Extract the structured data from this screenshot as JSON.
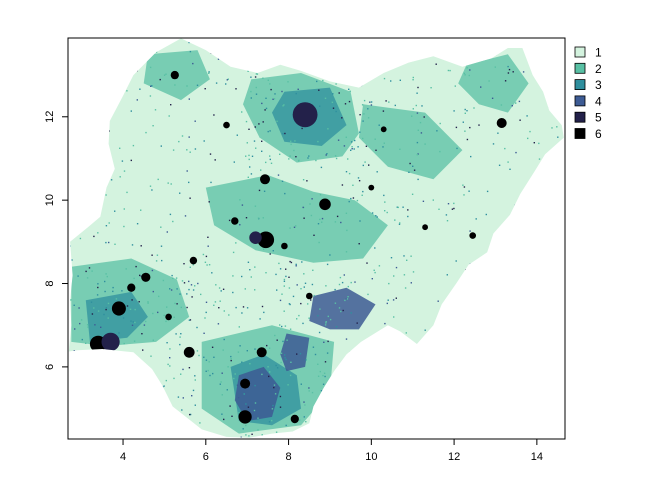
{
  "chart_data": {
    "type": "raster-map",
    "title": "",
    "xlabel": "",
    "ylabel": "",
    "xlim": [
      2.67,
      14.68
    ],
    "ylim": [
      4.27,
      13.89
    ],
    "x_ticks": [
      {
        "value": 4,
        "label": "4"
      },
      {
        "value": 6,
        "label": "6"
      },
      {
        "value": 8,
        "label": "8"
      },
      {
        "value": 10,
        "label": "10"
      },
      {
        "value": 12,
        "label": "12"
      },
      {
        "value": 14,
        "label": "14"
      }
    ],
    "y_ticks": [
      {
        "value": 6,
        "label": "6"
      },
      {
        "value": 8,
        "label": "8"
      },
      {
        "value": 10,
        "label": "10"
      },
      {
        "value": 12,
        "label": "12"
      }
    ],
    "legend": {
      "placement": "right",
      "classes": [
        {
          "value": 1,
          "label": "1",
          "color": "#d4f3df"
        },
        {
          "value": 2,
          "label": "2",
          "color": "#59c0a4"
        },
        {
          "value": 3,
          "label": "3",
          "color": "#2f8f9e"
        },
        {
          "value": 4,
          "label": "4",
          "color": "#3d5b94"
        },
        {
          "value": 5,
          "label": "5",
          "color": "#23214a"
        },
        {
          "value": 6,
          "label": "6",
          "color": "#000000"
        }
      ]
    },
    "outline": [
      [
        2.69,
        6.37
      ],
      [
        2.75,
        7.0
      ],
      [
        2.72,
        7.6
      ],
      [
        2.78,
        8.2
      ],
      [
        2.72,
        9.0
      ],
      [
        3.15,
        9.35
      ],
      [
        3.45,
        9.6
      ],
      [
        3.6,
        10.3
      ],
      [
        3.8,
        10.75
      ],
      [
        3.65,
        11.35
      ],
      [
        3.68,
        11.9
      ],
      [
        4.0,
        12.5
      ],
      [
        4.25,
        13.0
      ],
      [
        4.8,
        13.55
      ],
      [
        5.4,
        13.88
      ],
      [
        6.0,
        13.6
      ],
      [
        6.6,
        13.2
      ],
      [
        7.25,
        13.05
      ],
      [
        7.8,
        13.25
      ],
      [
        8.3,
        13.1
      ],
      [
        9.0,
        12.85
      ],
      [
        9.7,
        12.7
      ],
      [
        10.3,
        13.05
      ],
      [
        10.9,
        13.3
      ],
      [
        11.5,
        13.45
      ],
      [
        12.2,
        13.2
      ],
      [
        12.9,
        13.4
      ],
      [
        13.3,
        13.65
      ],
      [
        13.65,
        13.65
      ],
      [
        13.9,
        13.0
      ],
      [
        14.15,
        12.6
      ],
      [
        14.3,
        12.15
      ],
      [
        14.6,
        11.8
      ],
      [
        14.65,
        11.5
      ],
      [
        14.2,
        11.1
      ],
      [
        13.95,
        10.7
      ],
      [
        13.6,
        10.15
      ],
      [
        13.35,
        9.65
      ],
      [
        12.95,
        9.2
      ],
      [
        12.8,
        8.75
      ],
      [
        12.35,
        8.45
      ],
      [
        12.05,
        8.0
      ],
      [
        11.7,
        7.5
      ],
      [
        11.5,
        7.0
      ],
      [
        11.1,
        6.55
      ],
      [
        10.7,
        6.85
      ],
      [
        10.4,
        7.0
      ],
      [
        9.75,
        6.6
      ],
      [
        9.4,
        6.3
      ],
      [
        9.1,
        5.9
      ],
      [
        8.85,
        5.5
      ],
      [
        8.6,
        5.05
      ],
      [
        8.5,
        4.65
      ],
      [
        8.1,
        4.45
      ],
      [
        7.6,
        4.4
      ],
      [
        7.05,
        4.3
      ],
      [
        6.5,
        4.32
      ],
      [
        5.9,
        4.5
      ],
      [
        5.65,
        4.7
      ],
      [
        5.2,
        5.05
      ],
      [
        4.95,
        5.55
      ],
      [
        4.7,
        5.95
      ],
      [
        4.25,
        6.35
      ],
      [
        3.5,
        6.43
      ],
      [
        2.9,
        6.4
      ]
    ],
    "regions": [
      {
        "class": 2,
        "shape": [
          [
            7.1,
            12.9
          ],
          [
            8.3,
            13.05
          ],
          [
            9.5,
            12.6
          ],
          [
            9.7,
            11.6
          ],
          [
            9.3,
            11.05
          ],
          [
            8.2,
            10.9
          ],
          [
            7.3,
            11.5
          ],
          [
            6.9,
            12.3
          ]
        ]
      },
      {
        "class": 3,
        "shape": [
          [
            7.9,
            12.6
          ],
          [
            9.0,
            12.7
          ],
          [
            9.4,
            11.8
          ],
          [
            8.8,
            11.3
          ],
          [
            7.9,
            11.4
          ],
          [
            7.6,
            12.1
          ]
        ]
      },
      {
        "class": 2,
        "shape": [
          [
            12.3,
            13.25
          ],
          [
            13.3,
            13.5
          ],
          [
            13.8,
            12.8
          ],
          [
            13.3,
            12.1
          ],
          [
            12.6,
            12.3
          ],
          [
            12.1,
            12.8
          ]
        ]
      },
      {
        "class": 2,
        "shape": [
          [
            4.6,
            13.5
          ],
          [
            5.8,
            13.6
          ],
          [
            6.1,
            12.9
          ],
          [
            5.4,
            12.4
          ],
          [
            4.5,
            12.8
          ]
        ]
      },
      {
        "class": 2,
        "shape": [
          [
            2.75,
            8.4
          ],
          [
            4.2,
            8.6
          ],
          [
            5.3,
            8.1
          ],
          [
            5.6,
            7.2
          ],
          [
            4.8,
            6.6
          ],
          [
            3.6,
            6.5
          ],
          [
            2.75,
            6.6
          ]
        ]
      },
      {
        "class": 3,
        "shape": [
          [
            3.1,
            7.6
          ],
          [
            4.2,
            7.8
          ],
          [
            4.6,
            7.2
          ],
          [
            4.1,
            6.7
          ],
          [
            3.2,
            6.6
          ]
        ]
      },
      {
        "class": 2,
        "shape": [
          [
            5.9,
            6.6
          ],
          [
            7.6,
            7.0
          ],
          [
            9.1,
            6.6
          ],
          [
            9.0,
            5.4
          ],
          [
            8.3,
            4.6
          ],
          [
            6.8,
            4.4
          ],
          [
            5.9,
            5.0
          ]
        ]
      },
      {
        "class": 3,
        "shape": [
          [
            6.6,
            6.0
          ],
          [
            7.4,
            6.3
          ],
          [
            8.2,
            5.8
          ],
          [
            8.3,
            5.0
          ],
          [
            7.6,
            4.6
          ],
          [
            6.8,
            4.7
          ]
        ]
      },
      {
        "class": 4,
        "shape": [
          [
            8.6,
            7.7
          ],
          [
            9.4,
            7.9
          ],
          [
            10.1,
            7.5
          ],
          [
            9.7,
            6.9
          ],
          [
            9.0,
            6.9
          ],
          [
            8.5,
            7.1
          ]
        ]
      },
      {
        "class": 4,
        "shape": [
          [
            6.8,
            5.8
          ],
          [
            7.4,
            6.0
          ],
          [
            7.8,
            5.5
          ],
          [
            7.6,
            4.8
          ],
          [
            7.0,
            4.7
          ],
          [
            6.7,
            5.2
          ]
        ]
      },
      {
        "class": 4,
        "shape": [
          [
            7.95,
            6.8
          ],
          [
            8.5,
            6.7
          ],
          [
            8.4,
            6.0
          ],
          [
            7.95,
            5.9
          ],
          [
            7.8,
            6.3
          ]
        ]
      },
      {
        "class": 2,
        "shape": [
          [
            6.0,
            10.3
          ],
          [
            7.5,
            10.6
          ],
          [
            8.6,
            10.2
          ],
          [
            9.6,
            10.0
          ],
          [
            10.4,
            9.4
          ],
          [
            9.8,
            8.6
          ],
          [
            8.6,
            8.5
          ],
          [
            7.2,
            8.8
          ],
          [
            6.2,
            9.4
          ]
        ]
      },
      {
        "class": 2,
        "shape": [
          [
            9.8,
            12.3
          ],
          [
            11.3,
            12.1
          ],
          [
            12.2,
            11.2
          ],
          [
            11.5,
            10.5
          ],
          [
            10.4,
            10.8
          ],
          [
            9.7,
            11.5
          ]
        ]
      }
    ],
    "cities": [
      {
        "class": 6,
        "x": 8.52,
        "y": 12.0,
        "r": 0.16
      },
      {
        "class": 5,
        "x": 8.4,
        "y": 12.05,
        "r": 0.3
      },
      {
        "class": 6,
        "x": 7.43,
        "y": 10.5,
        "r": 0.12
      },
      {
        "class": 6,
        "x": 7.45,
        "y": 9.05,
        "r": 0.2
      },
      {
        "class": 5,
        "x": 7.2,
        "y": 9.1,
        "r": 0.15
      },
      {
        "class": 6,
        "x": 8.88,
        "y": 9.9,
        "r": 0.14
      },
      {
        "class": 6,
        "x": 13.15,
        "y": 11.85,
        "r": 0.12
      },
      {
        "class": 6,
        "x": 5.25,
        "y": 13.0,
        "r": 0.1
      },
      {
        "class": 6,
        "x": 3.4,
        "y": 6.55,
        "r": 0.2
      },
      {
        "class": 5,
        "x": 3.7,
        "y": 6.6,
        "r": 0.22
      },
      {
        "class": 6,
        "x": 3.9,
        "y": 7.4,
        "r": 0.17
      },
      {
        "class": 6,
        "x": 4.55,
        "y": 8.15,
        "r": 0.11
      },
      {
        "class": 6,
        "x": 4.2,
        "y": 7.9,
        "r": 0.1
      },
      {
        "class": 6,
        "x": 5.6,
        "y": 6.35,
        "r": 0.13
      },
      {
        "class": 6,
        "x": 6.95,
        "y": 4.8,
        "r": 0.16
      },
      {
        "class": 6,
        "x": 6.95,
        "y": 5.6,
        "r": 0.12
      },
      {
        "class": 6,
        "x": 7.35,
        "y": 6.35,
        "r": 0.12
      },
      {
        "class": 6,
        "x": 8.15,
        "y": 4.75,
        "r": 0.1
      },
      {
        "class": 6,
        "x": 6.7,
        "y": 9.5,
        "r": 0.09
      },
      {
        "class": 6,
        "x": 11.3,
        "y": 9.35,
        "r": 0.07
      },
      {
        "class": 6,
        "x": 12.45,
        "y": 9.15,
        "r": 0.08
      },
      {
        "class": 6,
        "x": 6.5,
        "y": 11.8,
        "r": 0.08
      },
      {
        "class": 6,
        "x": 10.0,
        "y": 10.3,
        "r": 0.07
      },
      {
        "class": 6,
        "x": 10.3,
        "y": 11.7,
        "r": 0.07
      },
      {
        "class": 6,
        "x": 5.7,
        "y": 8.55,
        "r": 0.09
      },
      {
        "class": 6,
        "x": 8.5,
        "y": 7.7,
        "r": 0.08
      },
      {
        "class": 6,
        "x": 7.9,
        "y": 8.9,
        "r": 0.08
      },
      {
        "class": 6,
        "x": 5.1,
        "y": 7.2,
        "r": 0.08
      }
    ]
  }
}
